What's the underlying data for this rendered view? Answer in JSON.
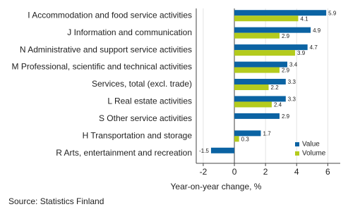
{
  "chart_data": {
    "type": "bar",
    "orientation": "horizontal",
    "categories": [
      "I Accommodation and food service activities",
      "J Information and communication",
      "N Administrative and support service activities",
      "M Professional, scientific and technical activities",
      "Services, total (excl. trade)",
      "L Real estate activities",
      "S Other service activities",
      "H Transportation and storage",
      "R Arts, entertainment and recreation"
    ],
    "series": [
      {
        "name": "Value",
        "color": "#0b63a3",
        "values": [
          5.9,
          4.9,
          4.7,
          3.4,
          3.3,
          3.3,
          2.9,
          1.7,
          -1.5
        ]
      },
      {
        "name": "Volume",
        "color": "#b4cb1d",
        "values": [
          4.1,
          2.9,
          3.9,
          2.9,
          2.2,
          2.4,
          null,
          0.3,
          null
        ]
      }
    ],
    "xlim": [
      -2.45,
      6.8
    ],
    "xticks": [
      -2,
      0,
      2,
      4,
      6
    ],
    "grid": true,
    "xlabel": "Year-on-year change, %",
    "source": "Source: Statistics Finland",
    "legend": "lower right"
  }
}
